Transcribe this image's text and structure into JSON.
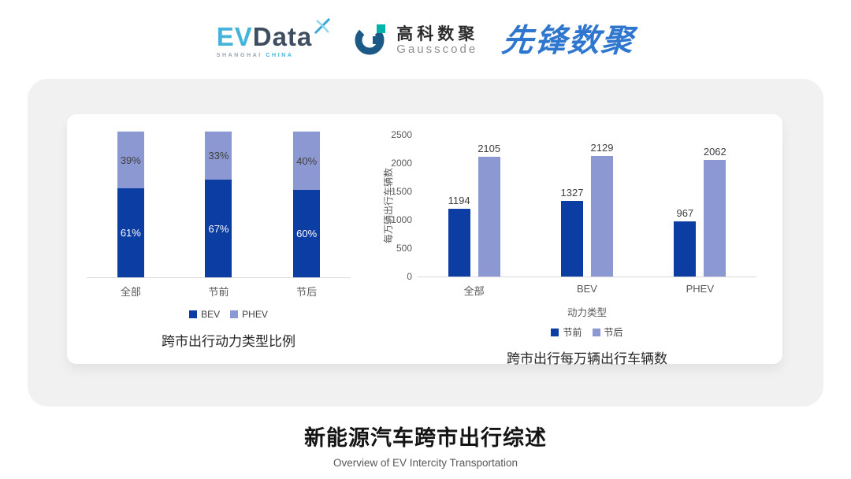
{
  "header": {
    "evdata": {
      "ev": "EV",
      "data": "Data",
      "sub_left": "SHANGHAI",
      "sub_right": "CHINA"
    },
    "gausscode": {
      "cn": "高科数聚",
      "en": "Gausscode"
    },
    "xianfeng": {
      "text": "先锋数聚"
    }
  },
  "colors": {
    "evdata_cyan": "#45b3da",
    "evdata_dark": "#3e4d5f",
    "gausscode_navy": "#1b5a86",
    "gausscode_teal": "#00b2a9",
    "xianfeng_blue": "#2f76cf",
    "bev_dark_blue": "#0b3da2",
    "phev_light_blue": "#8c98d2",
    "card_gray": "#f1f1f1",
    "axis_gray": "#d9d9d9",
    "text_dark": "#3f3f3f",
    "text_gray": "#595959"
  },
  "chart_data": [
    {
      "type": "bar",
      "subtype": "stacked-100-percent",
      "title": "跨市出行动力类型比例",
      "categories": [
        "全部",
        "节前",
        "节后"
      ],
      "series": [
        {
          "name": "BEV",
          "color": "#0b3da2",
          "values": [
            61,
            67,
            60
          ],
          "labels": [
            "61%",
            "67%",
            "60%"
          ]
        },
        {
          "name": "PHEV",
          "color": "#8c98d2",
          "values": [
            39,
            33,
            40
          ],
          "labels": [
            "39%",
            "33%",
            "40%"
          ]
        }
      ],
      "unit": "%",
      "ylim": [
        0,
        100
      ],
      "grid": false,
      "legend_position": "bottom"
    },
    {
      "type": "bar",
      "subtype": "grouped",
      "title": "跨市出行每万辆出行车辆数",
      "categories": [
        "全部",
        "BEV",
        "PHEV"
      ],
      "xlabel": "动力类型",
      "ylabel": "每万辆出行车辆数",
      "ylim": [
        0,
        2500
      ],
      "yticks": [
        0,
        500,
        1000,
        1500,
        2000,
        2500
      ],
      "series": [
        {
          "name": "节前",
          "color": "#0b3da2",
          "values": [
            1194,
            1327,
            967
          ]
        },
        {
          "name": "节后",
          "color": "#8c98d2",
          "values": [
            2105,
            2129,
            2062
          ]
        }
      ],
      "grid": false,
      "legend_position": "bottom"
    }
  ],
  "footer": {
    "title": "新能源汽车跨市出行综述",
    "subtitle": "Overview of EV Intercity Transportation"
  }
}
